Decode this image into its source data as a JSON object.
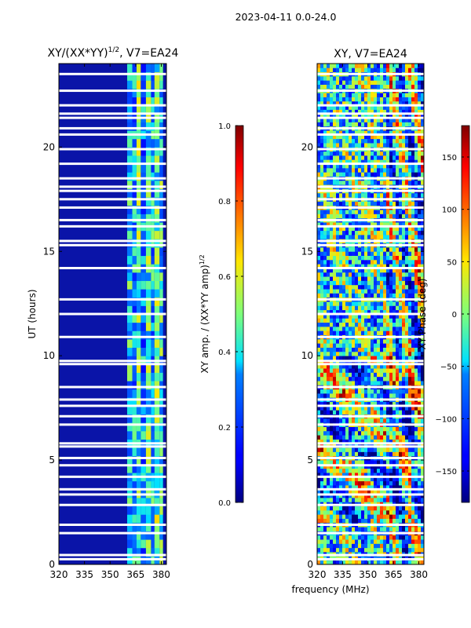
{
  "figure": {
    "suptitle": "2023-04-11 0.0-24.0",
    "shared_xlabel": "frequency (MHz)"
  },
  "chart_data": [
    {
      "type": "heatmap",
      "title_main": "XY/(XX*YY)",
      "title_sup": "1/2",
      "title_rest": ", V7=EA24",
      "ylabel": "UT (hours)",
      "xlim": [
        320,
        383
      ],
      "ylim": [
        0,
        24
      ],
      "xticks": [
        "320",
        "335",
        "350",
        "365",
        "380"
      ],
      "xtick_values": [
        320,
        335,
        350,
        365,
        380
      ],
      "yticks": [
        "0",
        "5",
        "10",
        "15",
        "20"
      ],
      "ytick_values": [
        0,
        5,
        10,
        15,
        20
      ],
      "colorbar": {
        "label_main": "XY amp. / (XX*YY amp)",
        "label_sup": "1/2",
        "range": [
          0.0,
          1.0
        ],
        "ticks": [
          "0.0",
          "0.2",
          "0.4",
          "0.6",
          "0.8",
          "1.0"
        ],
        "tick_values": [
          0.0,
          0.2,
          0.4,
          0.6,
          0.8,
          1.0
        ]
      },
      "flagged_hours": [
        0.25,
        0.45,
        1.5,
        1.9,
        2.85,
        3.35,
        3.6,
        4.2,
        4.75,
        5.1,
        5.65,
        5.8,
        6.7,
        7.1,
        7.6,
        7.9,
        8.5,
        9.6,
        9.75,
        10.9,
        12.0,
        12.7,
        14.2,
        15.3,
        15.5,
        16.2,
        16.5,
        17.1,
        17.5,
        17.9,
        18.1,
        18.5,
        19.2,
        19.9,
        20.6,
        20.9,
        21.4,
        21.6,
        22.0,
        22.7,
        23.5
      ]
    },
    {
      "type": "heatmap",
      "title": "XY, V7=EA24",
      "xlim": [
        320,
        383
      ],
      "ylim": [
        0,
        24
      ],
      "xticks": [
        "320",
        "335",
        "350",
        "365",
        "380"
      ],
      "xtick_values": [
        320,
        335,
        350,
        365,
        380
      ],
      "yticks": [
        "0",
        "5",
        "10",
        "15",
        "20"
      ],
      "ytick_values": [
        0,
        5,
        10,
        15,
        20
      ],
      "colorbar": {
        "label": "XY Phase (deg)",
        "range": [
          -180,
          180
        ],
        "ticks": [
          "−150",
          "−100",
          "−50",
          "0",
          "50",
          "100",
          "150"
        ],
        "tick_values": [
          -150,
          -100,
          -50,
          0,
          50,
          100,
          150
        ]
      },
      "flagged_hours": [
        0.25,
        0.45,
        1.5,
        1.9,
        2.85,
        3.35,
        3.6,
        4.2,
        4.75,
        5.1,
        5.65,
        5.8,
        6.7,
        7.1,
        7.6,
        7.9,
        8.5,
        9.6,
        9.75,
        10.9,
        12.0,
        12.7,
        14.2,
        15.3,
        15.5,
        16.2,
        16.5,
        17.1,
        17.5,
        17.9,
        18.1,
        18.5,
        19.2,
        19.9,
        20.6,
        20.9,
        21.4,
        21.6,
        22.0,
        22.7,
        23.5
      ]
    }
  ]
}
